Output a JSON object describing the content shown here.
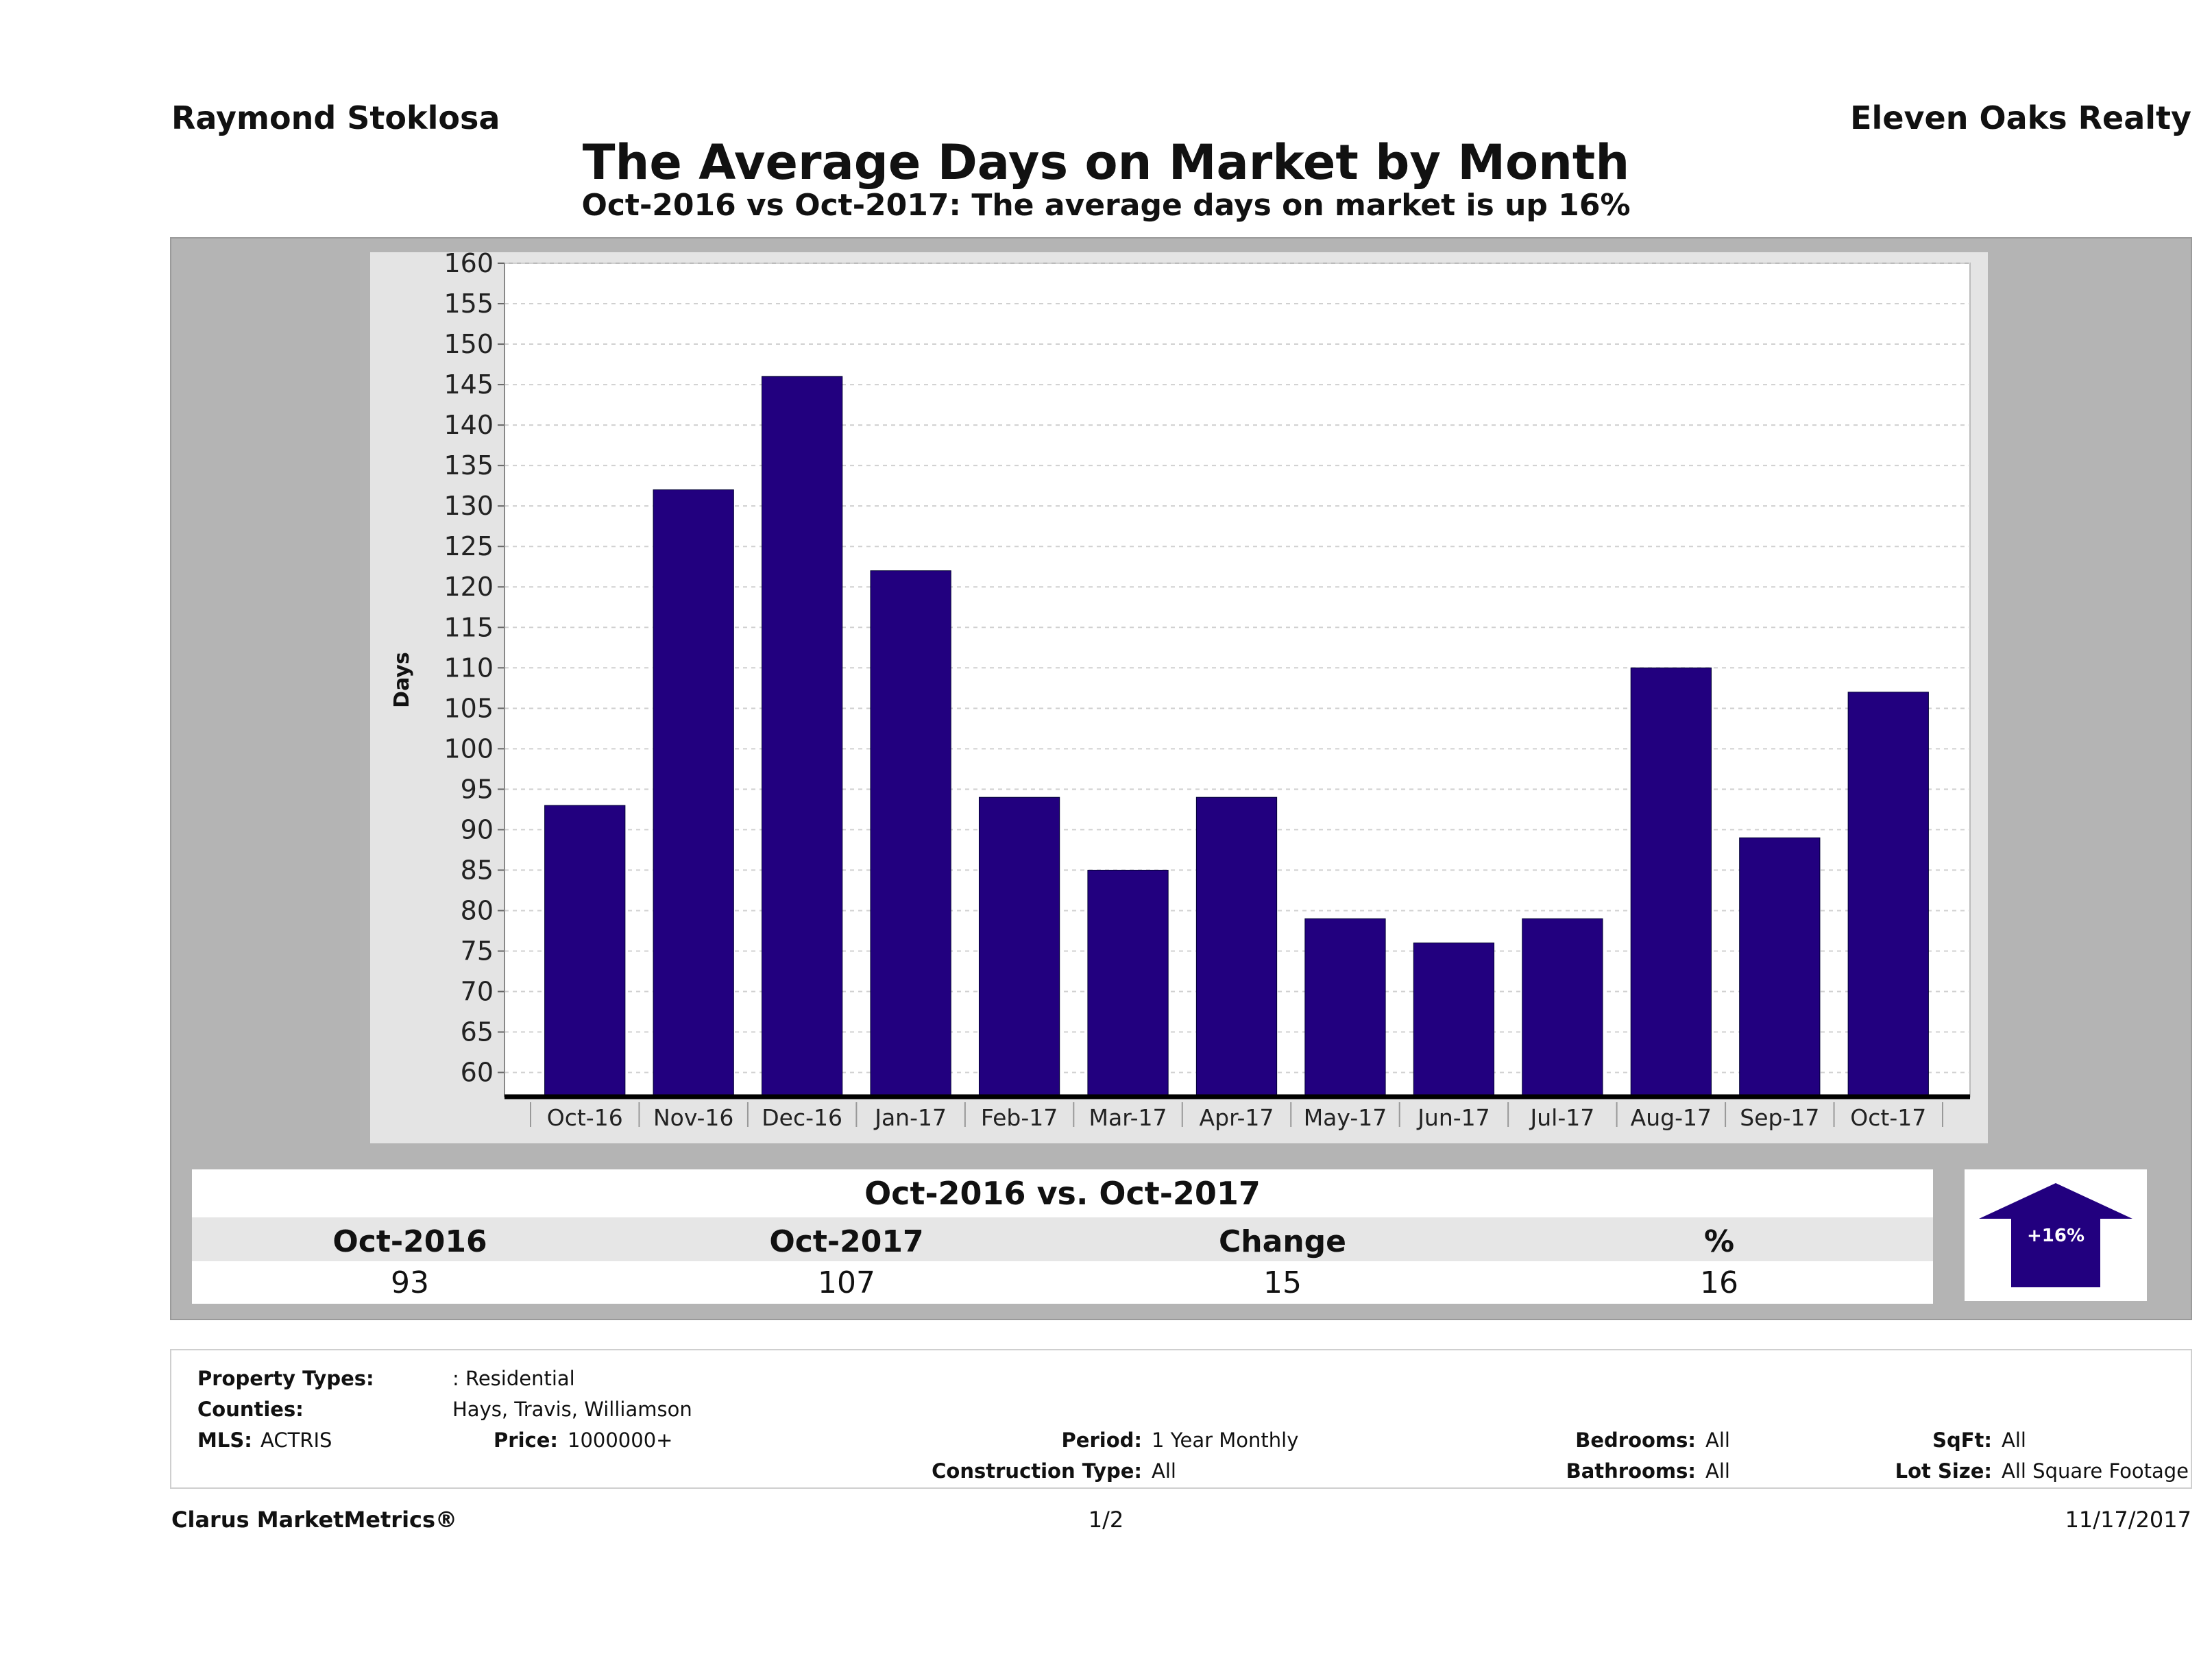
{
  "header": {
    "agent": "Raymond Stoklosa",
    "company": "Eleven Oaks Realty",
    "title": "The Average Days on Market by Month",
    "subtitle": "Oct-2016 vs Oct-2017: The average days on market is up 16%"
  },
  "chart_data": {
    "type": "bar",
    "categories": [
      "Oct-16",
      "Nov-16",
      "Dec-16",
      "Jan-17",
      "Feb-17",
      "Mar-17",
      "Apr-17",
      "May-17",
      "Jun-17",
      "Jul-17",
      "Aug-17",
      "Sep-17",
      "Oct-17"
    ],
    "values": [
      93,
      132,
      146,
      122,
      94,
      85,
      94,
      79,
      76,
      79,
      110,
      89,
      107
    ],
    "ylabel": "Days",
    "ylim": [
      57,
      160
    ],
    "yticks": [
      60,
      65,
      70,
      75,
      80,
      85,
      90,
      95,
      100,
      105,
      110,
      115,
      120,
      125,
      130,
      135,
      140,
      145,
      150,
      155,
      160
    ],
    "grid": true,
    "bar_color": "#22007f"
  },
  "summary": {
    "title": "Oct-2016 vs. Oct-2017",
    "headers": [
      "Oct-2016",
      "Oct-2017",
      "Change",
      "%"
    ],
    "values": [
      "93",
      "107",
      "15",
      "16"
    ],
    "badge": "+16%",
    "badge_color": "#22007f"
  },
  "criteria": {
    "property_types_label": "Property Types:",
    "property_types_value": ": Residential",
    "counties_label": "Counties:",
    "counties_value": "Hays, Travis, Williamson",
    "mls_label": "MLS:",
    "mls_value": "ACTRIS",
    "price_label": "Price:",
    "price_value": "1000000+",
    "period_label": "Period:",
    "period_value": "1 Year Monthly",
    "construction_label": "Construction Type:",
    "construction_value": "All",
    "bedrooms_label": "Bedrooms:",
    "bedrooms_value": "All",
    "bathrooms_label": "Bathrooms:",
    "bathrooms_value": "All",
    "sqft_label": "SqFt:",
    "sqft_value": "All",
    "lot_label": "Lot Size:",
    "lot_value": "All Square Footage"
  },
  "footer": {
    "brand": "Clarus MarketMetrics®",
    "page": "1/2",
    "date": "11/17/2017"
  }
}
